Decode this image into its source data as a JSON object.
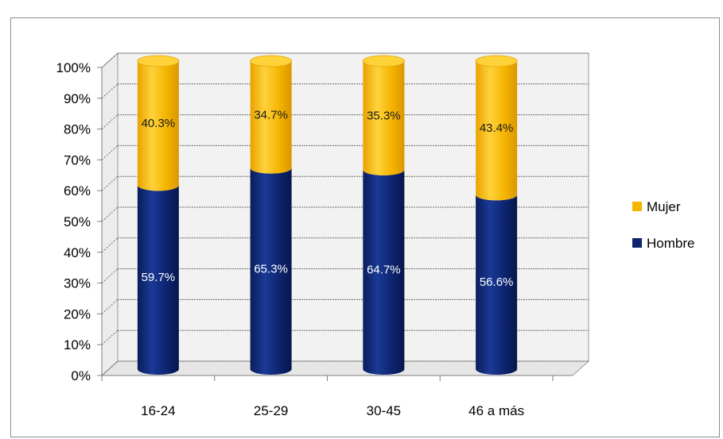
{
  "chart_data": {
    "type": "bar",
    "stacked": true,
    "percent": true,
    "title": "",
    "categories": [
      "16-24",
      "25-29",
      "30-45",
      "46 a más"
    ],
    "series": [
      {
        "name": "Hombre",
        "color": "#0d2470",
        "values": [
          59.7,
          65.3,
          64.7,
          56.6
        ],
        "labels": [
          "59.7%",
          "65.3%",
          "64.7%",
          "56.6%"
        ]
      },
      {
        "name": "Mujer",
        "color": "#f5b400",
        "values": [
          40.3,
          34.7,
          35.3,
          43.4
        ],
        "labels": [
          "40.3%",
          "34.7%",
          "35.3%",
          "43.4%"
        ]
      }
    ],
    "yticks": [
      "0%",
      "10%",
      "20%",
      "30%",
      "40%",
      "50%",
      "60%",
      "70%",
      "80%",
      "90%",
      "100%"
    ],
    "ylim": [
      0,
      100
    ],
    "grid": true,
    "legend": "right",
    "style": "3d-cylinder"
  }
}
